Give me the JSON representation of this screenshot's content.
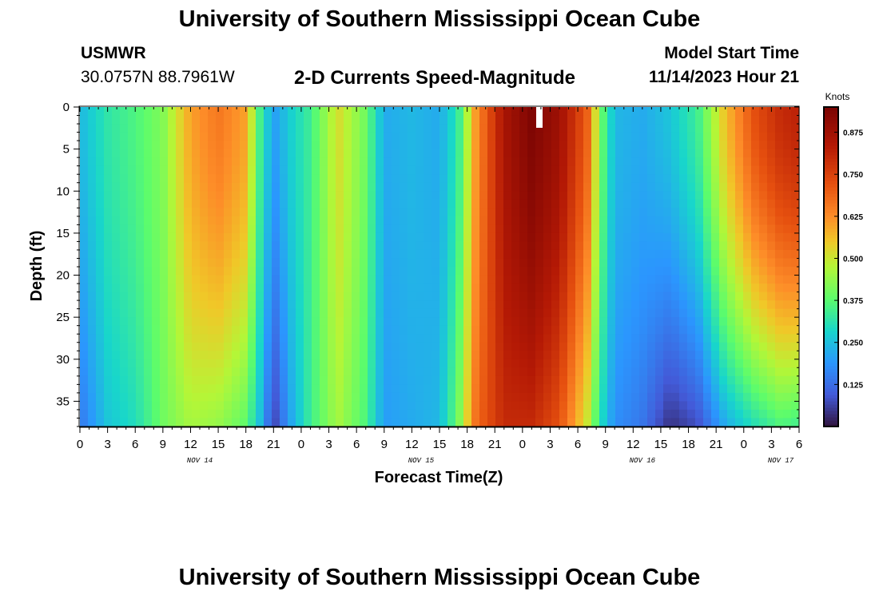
{
  "header": {
    "title": "University of Southern Mississippi Ocean Cube",
    "station_name": "USMWR",
    "station_coords": "30.0757N  88.7961W",
    "plot_title": "2-D Currents Speed-Magnitude",
    "model_start_label": "Model Start Time",
    "model_start_value": "11/14/2023 Hour 21"
  },
  "footer": {
    "title": "University of Southern Mississippi Ocean Cube"
  },
  "chart_data": {
    "type": "heatmap",
    "xlabel": "Forecast Time(Z)",
    "ylabel": "Depth (ft)",
    "colorbar_title": "Knots",
    "x_tick_labels": [
      "0",
      "3",
      "6",
      "9",
      "12",
      "15",
      "18",
      "21",
      "0",
      "3",
      "6",
      "9",
      "12",
      "15",
      "18",
      "21",
      "0",
      "3",
      "6",
      "9",
      "12",
      "15",
      "18",
      "21",
      "0",
      "3",
      "6"
    ],
    "date_labels": [
      {
        "label": "NOV 14",
        "hour": 13
      },
      {
        "label": "NOV 15",
        "hour": 37
      },
      {
        "label": "NOV 16",
        "hour": 61
      },
      {
        "label": "NOV 17",
        "hour": 76
      }
    ],
    "xlim_hours": [
      0,
      78
    ],
    "y_ticks": [
      0,
      5,
      10,
      15,
      20,
      25,
      30,
      35
    ],
    "ylim_ft": [
      0,
      38
    ],
    "colorbar_ticks": [
      0.125,
      0.25,
      0.375,
      0.5,
      0.625,
      0.75,
      0.875
    ],
    "colorbar_range": [
      0,
      0.95
    ],
    "colormap": "turbo",
    "columns": [
      {
        "x_hours": 0,
        "surface": 0.24,
        "bottom": 0.14
      },
      {
        "x_hours": 3,
        "surface": 0.32,
        "bottom": 0.26
      },
      {
        "x_hours": 6,
        "surface": 0.36,
        "bottom": 0.3
      },
      {
        "x_hours": 9,
        "surface": 0.42,
        "bottom": 0.4
      },
      {
        "x_hours": 12,
        "surface": 0.6,
        "bottom": 0.46
      },
      {
        "x_hours": 15,
        "surface": 0.66,
        "bottom": 0.44
      },
      {
        "x_hours": 18,
        "surface": 0.6,
        "bottom": 0.38
      },
      {
        "x_hours": 19.5,
        "surface": 0.35,
        "bottom": 0.25
      },
      {
        "x_hours": 21,
        "surface": 0.2,
        "bottom": 0.06
      },
      {
        "x_hours": 23,
        "surface": 0.28,
        "bottom": 0.22
      },
      {
        "x_hours": 25,
        "surface": 0.34,
        "bottom": 0.34
      },
      {
        "x_hours": 28,
        "surface": 0.52,
        "bottom": 0.46
      },
      {
        "x_hours": 31,
        "surface": 0.4,
        "bottom": 0.36
      },
      {
        "x_hours": 33,
        "surface": 0.22,
        "bottom": 0.2
      },
      {
        "x_hours": 36,
        "surface": 0.24,
        "bottom": 0.22
      },
      {
        "x_hours": 39,
        "surface": 0.22,
        "bottom": 0.24
      },
      {
        "x_hours": 41,
        "surface": 0.32,
        "bottom": 0.4
      },
      {
        "x_hours": 43,
        "surface": 0.62,
        "bottom": 0.68
      },
      {
        "x_hours": 46,
        "surface": 0.86,
        "bottom": 0.8
      },
      {
        "x_hours": 49,
        "surface": 0.94,
        "bottom": 0.8
      },
      {
        "x_hours": 52,
        "surface": 0.88,
        "bottom": 0.72
      },
      {
        "x_hours": 55,
        "surface": 0.7,
        "bottom": 0.5
      },
      {
        "x_hours": 56.5,
        "surface": 0.4,
        "bottom": 0.3
      },
      {
        "x_hours": 58,
        "surface": 0.24,
        "bottom": 0.18
      },
      {
        "x_hours": 61,
        "surface": 0.22,
        "bottom": 0.14
      },
      {
        "x_hours": 64,
        "surface": 0.26,
        "bottom": 0.04
      },
      {
        "x_hours": 67,
        "surface": 0.34,
        "bottom": 0.08
      },
      {
        "x_hours": 70,
        "surface": 0.56,
        "bottom": 0.22
      },
      {
        "x_hours": 73,
        "surface": 0.72,
        "bottom": 0.3
      },
      {
        "x_hours": 76,
        "surface": 0.8,
        "bottom": 0.36
      },
      {
        "x_hours": 78,
        "surface": 0.82,
        "bottom": 0.34
      }
    ]
  }
}
